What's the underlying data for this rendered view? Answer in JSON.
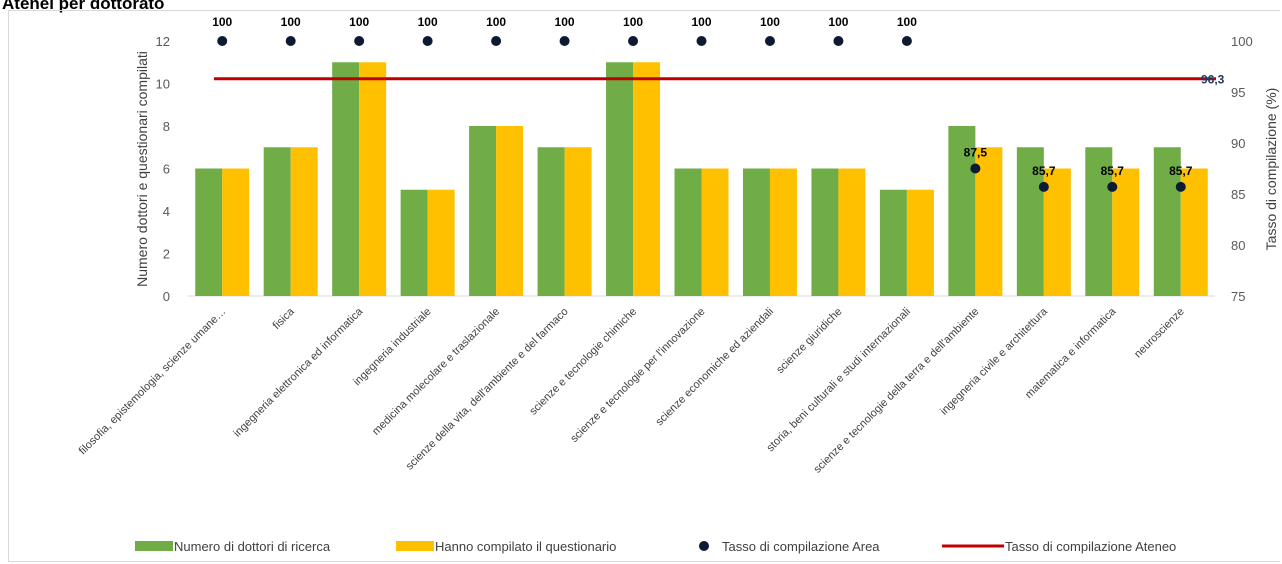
{
  "title": "Atenei per dottorato",
  "chart_data": {
    "type": "bar",
    "categories": [
      "filosofia, epistemologia, scienze umane…",
      "fisica",
      "ingegneria elettronica ed informatica",
      "ingegneria industriale",
      "medicina molecolare e traslazionale",
      "scienze della vita, dell'ambiente e del farmaco",
      "scienze e tecnologie chimiche",
      "scienze e tecnologie per l'innovazione",
      "scienze economiche ed aziendali",
      "scienze giuridiche",
      "storia, beni culturali e studi internazionali",
      "scienze e tecnologie della terra e dell'ambiente",
      "ingegneria civile e architettura",
      "matematica e informatica",
      "neuroscienze"
    ],
    "series": [
      {
        "name": "Numero di dottori di ricerca",
        "type": "bar",
        "axis": "left",
        "color": "#70ad47",
        "values": [
          6,
          7,
          11,
          5,
          8,
          7,
          11,
          6,
          6,
          6,
          5,
          8,
          7,
          7,
          7
        ]
      },
      {
        "name": "Hanno compilato il questionario",
        "type": "bar",
        "axis": "left",
        "color": "#ffc000",
        "values": [
          6,
          7,
          11,
          5,
          8,
          7,
          11,
          6,
          6,
          6,
          5,
          7,
          6,
          6,
          6
        ]
      },
      {
        "name": "Tasso di compilazione Area",
        "type": "scatter",
        "axis": "right",
        "color": "#0d1a33",
        "values": [
          100,
          100,
          100,
          100,
          100,
          100,
          100,
          100,
          100,
          100,
          100,
          87.5,
          85.7,
          85.7,
          85.7
        ],
        "labels": [
          "100",
          "100",
          "100",
          "100",
          "100",
          "100",
          "100",
          "100",
          "100",
          "100",
          "100",
          "87,5",
          "85,7",
          "85,7",
          "85,7"
        ]
      },
      {
        "name": "Tasso di compilazione Ateneo",
        "type": "line",
        "axis": "right",
        "color": "#c00000",
        "value": 96.3,
        "label": "96,3"
      }
    ],
    "y_left": {
      "label": "Numero dottori e questionari compilati",
      "ylim": [
        0,
        12
      ],
      "ticks": [
        "0",
        "2",
        "4",
        "6",
        "8",
        "10",
        "12"
      ]
    },
    "y_right": {
      "label": "Tasso di compilazione (%)",
      "ylim": [
        75,
        100
      ],
      "ticks": [
        "75",
        "80",
        "85",
        "90",
        "95",
        "100"
      ]
    },
    "grid": false,
    "legend_position": "bottom"
  }
}
